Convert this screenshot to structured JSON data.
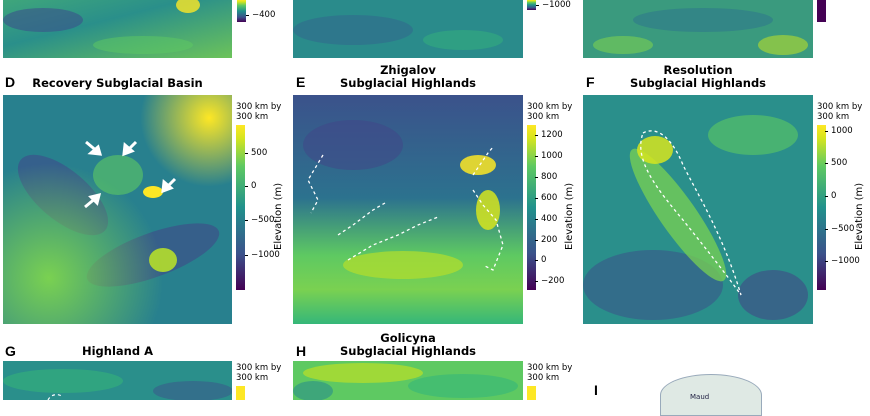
{
  "panels": {
    "top_a": {
      "ticks": [
        "−400"
      ]
    },
    "top_b": {
      "ticks": [
        "−1000"
      ]
    },
    "d": {
      "label": "D",
      "title": [
        "Recovery Subglacial Basin"
      ],
      "scale": [
        "300 km by",
        "300 km"
      ],
      "ticks": [
        "500",
        "0",
        "−500",
        "−1000"
      ],
      "axis_label": "Elevation (m)"
    },
    "e": {
      "label": "E",
      "title": [
        "Zhigalov",
        "Subglacial Highlands"
      ],
      "scale": [
        "300 km by",
        "300 km"
      ],
      "ticks": [
        "1200",
        "1000",
        "800",
        "600",
        "400",
        "200",
        "0",
        "−200"
      ],
      "axis_label": "Elevation (m)"
    },
    "f": {
      "label": "F",
      "title": [
        "Resolution",
        "Subglacial Highlands"
      ],
      "scale": [
        "300 km by",
        "300 km"
      ],
      "ticks": [
        "1000",
        "500",
        "0",
        "−500",
        "−1000"
      ],
      "axis_label": "Elevation (m)"
    },
    "g": {
      "label": "G",
      "title": [
        "Highland A"
      ],
      "scale": [
        "300 km by",
        "300 km"
      ]
    },
    "h": {
      "label": "H",
      "title": [
        "Golicyna",
        "Subglacial Highlands"
      ],
      "scale": [
        "300 km by",
        "300 km"
      ]
    },
    "i": {
      "label": "I",
      "map_label": "Maud"
    }
  },
  "colormap": [
    "#440154",
    "#3b528b",
    "#21918c",
    "#5ec962",
    "#d6e51f",
    "#fde725"
  ]
}
